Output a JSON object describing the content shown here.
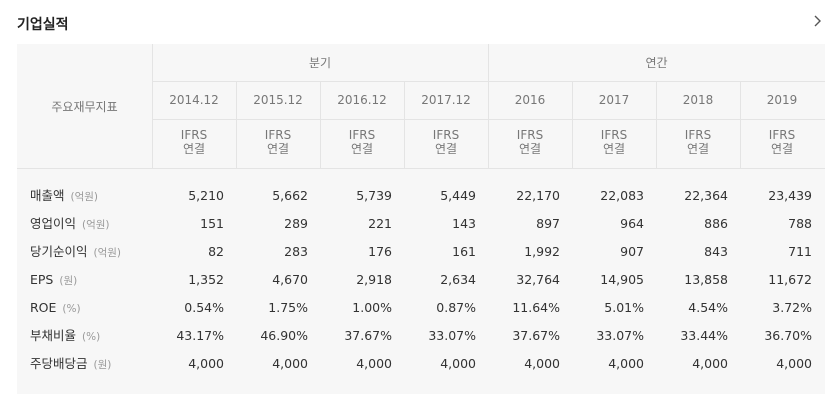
{
  "title": "기업실적",
  "table": {
    "label_header": "주요재무지표",
    "groups": [
      {
        "label": "분기"
      },
      {
        "label": "연간"
      }
    ],
    "periods": [
      {
        "label": "2014.12",
        "std": "IFRS",
        "basis": "연결"
      },
      {
        "label": "2015.12",
        "std": "IFRS",
        "basis": "연결"
      },
      {
        "label": "2016.12",
        "std": "IFRS",
        "basis": "연결"
      },
      {
        "label": "2017.12",
        "std": "IFRS",
        "basis": "연결"
      },
      {
        "label": "2016",
        "std": "IFRS",
        "basis": "연결"
      },
      {
        "label": "2017",
        "std": "IFRS",
        "basis": "연결"
      },
      {
        "label": "2018",
        "std": "IFRS",
        "basis": "연결"
      },
      {
        "label": "2019",
        "std": "IFRS",
        "basis": "연결"
      }
    ],
    "rows": [
      {
        "label": "매출액",
        "unit": "(억원)",
        "values": [
          "5,210",
          "5,662",
          "5,739",
          "5,449",
          "22,170",
          "22,083",
          "22,364",
          "23,439"
        ]
      },
      {
        "label": "영업이익",
        "unit": "(억원)",
        "values": [
          "151",
          "289",
          "221",
          "143",
          "897",
          "964",
          "886",
          "788"
        ]
      },
      {
        "label": "당기순이익",
        "unit": "(억원)",
        "values": [
          "82",
          "283",
          "176",
          "161",
          "1,992",
          "907",
          "843",
          "711"
        ]
      },
      {
        "label": "EPS",
        "unit": "(원)",
        "values": [
          "1,352",
          "4,670",
          "2,918",
          "2,634",
          "32,764",
          "14,905",
          "13,858",
          "11,672"
        ]
      },
      {
        "label": "ROE",
        "unit": "(%)",
        "values": [
          "0.54%",
          "1.75%",
          "1.00%",
          "0.87%",
          "11.64%",
          "5.01%",
          "4.54%",
          "3.72%"
        ]
      },
      {
        "label": "부채비율",
        "unit": "(%)",
        "values": [
          "43.17%",
          "46.90%",
          "37.67%",
          "33.07%",
          "37.67%",
          "33.07%",
          "33.44%",
          "36.70%"
        ]
      },
      {
        "label": "주당배당금",
        "unit": "(원)",
        "values": [
          "4,000",
          "4,000",
          "4,000",
          "4,000",
          "4,000",
          "4,000",
          "4,000",
          "4,000"
        ]
      }
    ]
  }
}
